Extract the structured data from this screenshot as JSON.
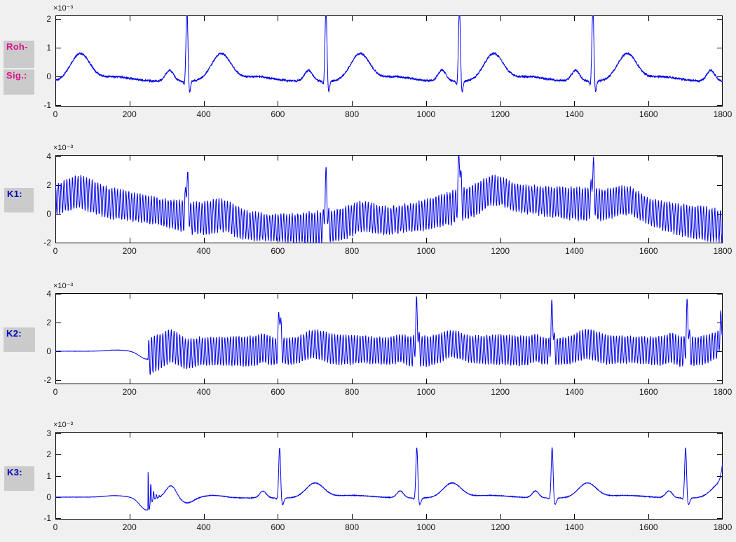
{
  "app": {
    "background": "#F0F0F0",
    "plot_background": "#FFFFFF",
    "axis_color": "#000000",
    "tick_label_color": "#151515",
    "label_box_color": "#CBCBCB",
    "raw_label_color": "#DD1188",
    "stage_label_color": "#0000BE",
    "trace_color": "#0000E8"
  },
  "side_labels": [
    {
      "text": "Roh-",
      "color": "#DD1188",
      "bg": "#CBCBCB"
    },
    {
      "text": "Sig.:",
      "color": "#DD1188",
      "bg": "#CBCBCB"
    },
    {
      "text": "K1:",
      "color": "#0000BE",
      "bg": "#CBCBCB"
    },
    {
      "text": "K2:",
      "color": "#0000BE",
      "bg": "#CBCBCB"
    },
    {
      "text": "K3:",
      "color": "#0000BE",
      "bg": "#CBCBCB"
    }
  ],
  "chart_data": [
    {
      "id": "roh_sig",
      "type": "line",
      "label": "Roh-Sig.:",
      "line_color": "#0000E8",
      "grid": false,
      "box": true,
      "xlim": [
        0,
        1800
      ],
      "ylim": [
        -1.05,
        2.12
      ],
      "xticks": [
        0,
        200,
        400,
        600,
        800,
        1000,
        1200,
        1400,
        1600,
        1800
      ],
      "yticks": [
        -1,
        0,
        1,
        2
      ],
      "exponent_label": "×10⁻³",
      "signal": {
        "kind": "ecg",
        "baseline": -0.17,
        "noise": 0.032,
        "beats": [
          -25,
          355,
          730,
          1090,
          1450,
          1815
        ],
        "waves": [
          {
            "name": "P",
            "dt": -47,
            "amp": 0.38,
            "sigma": 11
          },
          {
            "name": "Q",
            "dt": -6,
            "amp": -0.2,
            "sigma": 2.5
          },
          {
            "name": "R",
            "dt": 0,
            "amp": 2.55,
            "sigma": 2.8
          },
          {
            "name": "S",
            "dt": 6,
            "amp": -0.5,
            "sigma": 3
          },
          {
            "name": "T",
            "dt": 92,
            "amp": 0.95,
            "sigma": 26
          },
          {
            "name": "U",
            "dt": 185,
            "amp": 0.16,
            "sigma": 45
          }
        ]
      }
    },
    {
      "id": "k1",
      "type": "line",
      "label": "K1:",
      "line_color": "#0000E8",
      "grid": false,
      "box": true,
      "xlim": [
        0,
        1800
      ],
      "ylim": [
        -2.05,
        4.1
      ],
      "xticks": [
        0,
        200,
        400,
        600,
        800,
        1000,
        1200,
        1400,
        1600,
        1800
      ],
      "yticks": [
        -2,
        0,
        2,
        4
      ],
      "exponent_label": "×10⁻³",
      "signal": {
        "kind": "osc_ecg",
        "noise": 0.12,
        "osc": {
          "period": 7.6,
          "amp": 1.02,
          "amp_mod": 0.1,
          "phase": 1.2
        },
        "wander": [
          [
            0,
            1.0
          ],
          [
            65,
            1.55
          ],
          [
            140,
            0.8
          ],
          [
            220,
            0.45
          ],
          [
            300,
            0.05
          ],
          [
            420,
            -0.55
          ],
          [
            520,
            -0.85
          ],
          [
            620,
            -1.0
          ],
          [
            720,
            -0.95
          ],
          [
            800,
            -0.8
          ],
          [
            900,
            -0.5
          ],
          [
            1000,
            -0.05
          ],
          [
            1080,
            0.5
          ],
          [
            1160,
            1.05
          ],
          [
            1220,
            1.1
          ],
          [
            1300,
            0.95
          ],
          [
            1400,
            0.7
          ],
          [
            1500,
            0.6
          ],
          [
            1600,
            0.1
          ],
          [
            1700,
            -0.5
          ],
          [
            1800,
            -0.85
          ]
        ],
        "beats": [
          355,
          730,
          1090,
          1450
        ],
        "r_amps": [
          2.7,
          3.1,
          3.4,
          2.5
        ],
        "r_sigma": 3.2,
        "t": {
          "dt": 95,
          "amp": 0.55,
          "sigma": 30
        }
      }
    },
    {
      "id": "k2",
      "type": "line",
      "label": "K2:",
      "line_color": "#0000E8",
      "grid": false,
      "box": true,
      "xlim": [
        0,
        1800
      ],
      "ylim": [
        -2.3,
        4.05
      ],
      "xticks": [
        0,
        200,
        400,
        600,
        800,
        1000,
        1200,
        1400,
        1600,
        1800
      ],
      "yticks": [
        -2,
        0,
        2,
        4
      ],
      "exponent_label": "×10⁻³",
      "signal": {
        "kind": "onset_osc",
        "noise": 0.07,
        "flat_bump": {
          "x": 165,
          "amp": 0.08,
          "sigma": 28
        },
        "dip": {
          "x": 247,
          "amp": -0.55,
          "sigma": 20
        },
        "onset": 250,
        "recover": 15,
        "osc": {
          "period": 7.6,
          "amp": 0.98,
          "onset_boost": 0.3,
          "boost_decay": 70,
          "phase": 0
        },
        "beats": [
          605,
          975,
          1340,
          1705
        ],
        "waves": [
          {
            "name": "P",
            "dt": -45,
            "amp": 0.22,
            "sigma": 10
          },
          {
            "name": "R",
            "dt": 0,
            "amp": 2.85,
            "sigma": 3
          },
          {
            "name": "T",
            "dt": 95,
            "amp": 0.5,
            "sigma": 26
          },
          {
            "name": "U",
            "dt": 200,
            "amp": 0.12,
            "sigma": 50
          }
        ],
        "extra": [
          {
            "x": 312,
            "amp": 0.38,
            "sigma": 15
          },
          {
            "x": 358,
            "amp": -0.18,
            "sigma": 16
          }
        ],
        "end_spike": {
          "x": 1797,
          "amp": 1.6,
          "sigma": 4
        }
      }
    },
    {
      "id": "k3",
      "type": "line",
      "label": "K3:",
      "line_color": "#0000E8",
      "grid": false,
      "box": true,
      "xlim": [
        0,
        1800
      ],
      "ylim": [
        -1.05,
        3.05
      ],
      "xticks": [
        0,
        200,
        400,
        600,
        800,
        1000,
        1200,
        1400,
        1600,
        1800
      ],
      "yticks": [
        -1,
        0,
        1,
        2,
        3
      ],
      "exponent_label": "×10⁻³",
      "signal": {
        "kind": "onset_ecg",
        "baseline": -0.04,
        "noise": 0.014,
        "flat_bump": {
          "x": 160,
          "amp": 0.07,
          "sigma": 25
        },
        "dip": {
          "x": 246,
          "amp": -0.6,
          "sigma": 18
        },
        "onset": 250,
        "recover": 5,
        "burst": {
          "amp": 1.8,
          "decay": 9,
          "period": 7.5,
          "neg_factor": 0.2
        },
        "extra": [
          {
            "x": 312,
            "amp": 0.58,
            "sigma": 14
          },
          {
            "x": 355,
            "amp": -0.24,
            "sigma": 18
          },
          {
            "x": 425,
            "amp": 0.12,
            "sigma": 30
          }
        ],
        "beats": [
          605,
          975,
          1340,
          1700
        ],
        "waves": [
          {
            "name": "P",
            "dt": -45,
            "amp": 0.32,
            "sigma": 9
          },
          {
            "name": "Q",
            "dt": -6,
            "amp": -0.08,
            "sigma": 3
          },
          {
            "name": "R",
            "dt": 0,
            "amp": 2.42,
            "sigma": 2.6
          },
          {
            "name": "S",
            "dt": 7,
            "amp": -0.34,
            "sigma": 4
          },
          {
            "name": "T",
            "dt": 95,
            "amp": 0.68,
            "sigma": 24
          },
          {
            "name": "U",
            "dt": 195,
            "amp": 0.12,
            "sigma": 55
          }
        ],
        "end_spike": {
          "x": 1812,
          "amp": 2.4,
          "sigma": 9
        }
      }
    }
  ]
}
